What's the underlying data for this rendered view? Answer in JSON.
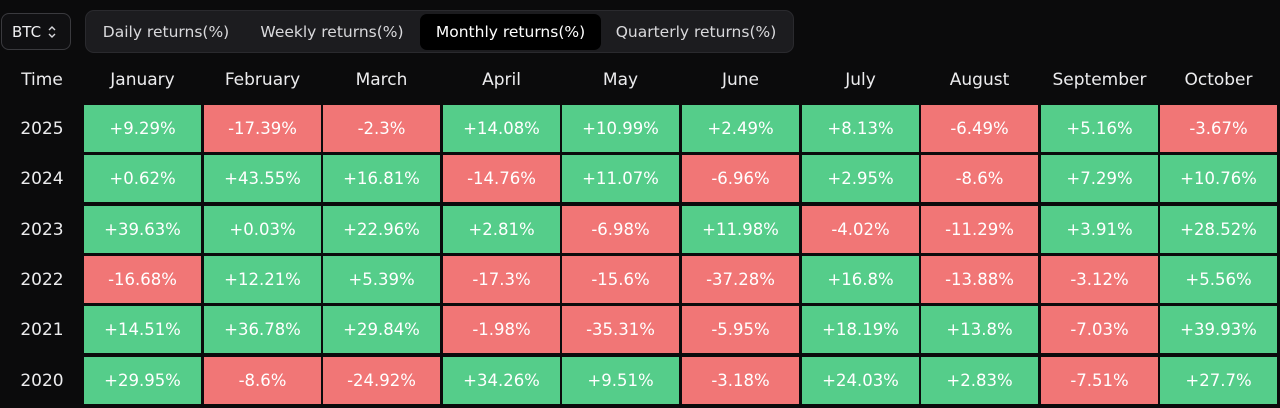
{
  "asset_selector": {
    "value": "BTC",
    "icon": "chevron-up-down-icon"
  },
  "tabs": [
    {
      "label": "Daily returns(%)",
      "active": false
    },
    {
      "label": "Weekly returns(%)",
      "active": false
    },
    {
      "label": "Monthly returns(%)",
      "active": true
    },
    {
      "label": "Quarterly returns(%)",
      "active": false
    }
  ],
  "table": {
    "time_header": "Time",
    "columns": [
      "January",
      "February",
      "March",
      "April",
      "May",
      "June",
      "July",
      "August",
      "September",
      "October"
    ],
    "rows": [
      {
        "year": "2025",
        "values": [
          "+9.29%",
          "-17.39%",
          "-2.3%",
          "+14.08%",
          "+10.99%",
          "+2.49%",
          "+8.13%",
          "-6.49%",
          "+5.16%",
          "-3.67%"
        ]
      },
      {
        "year": "2024",
        "values": [
          "+0.62%",
          "+43.55%",
          "+16.81%",
          "-14.76%",
          "+11.07%",
          "-6.96%",
          "+2.95%",
          "-8.6%",
          "+7.29%",
          "+10.76%"
        ]
      },
      {
        "year": "2023",
        "values": [
          "+39.63%",
          "+0.03%",
          "+22.96%",
          "+2.81%",
          "-6.98%",
          "+11.98%",
          "-4.02%",
          "-11.29%",
          "+3.91%",
          "+28.52%"
        ]
      },
      {
        "year": "2022",
        "values": [
          "-16.68%",
          "+12.21%",
          "+5.39%",
          "-17.3%",
          "-15.6%",
          "-37.28%",
          "+16.8%",
          "-13.88%",
          "-3.12%",
          "+5.56%"
        ]
      },
      {
        "year": "2021",
        "values": [
          "+14.51%",
          "+36.78%",
          "+29.84%",
          "-1.98%",
          "-35.31%",
          "-5.95%",
          "+18.19%",
          "+13.8%",
          "-7.03%",
          "+39.93%"
        ]
      },
      {
        "year": "2020",
        "values": [
          "+29.95%",
          "-8.6%",
          "-24.92%",
          "+34.26%",
          "+9.51%",
          "-3.18%",
          "+24.03%",
          "+2.83%",
          "-7.51%",
          "+27.7%"
        ]
      }
    ]
  },
  "colors": {
    "positive": "#55cd8a",
    "negative": "#f17676",
    "background": "#0b0b0c"
  }
}
